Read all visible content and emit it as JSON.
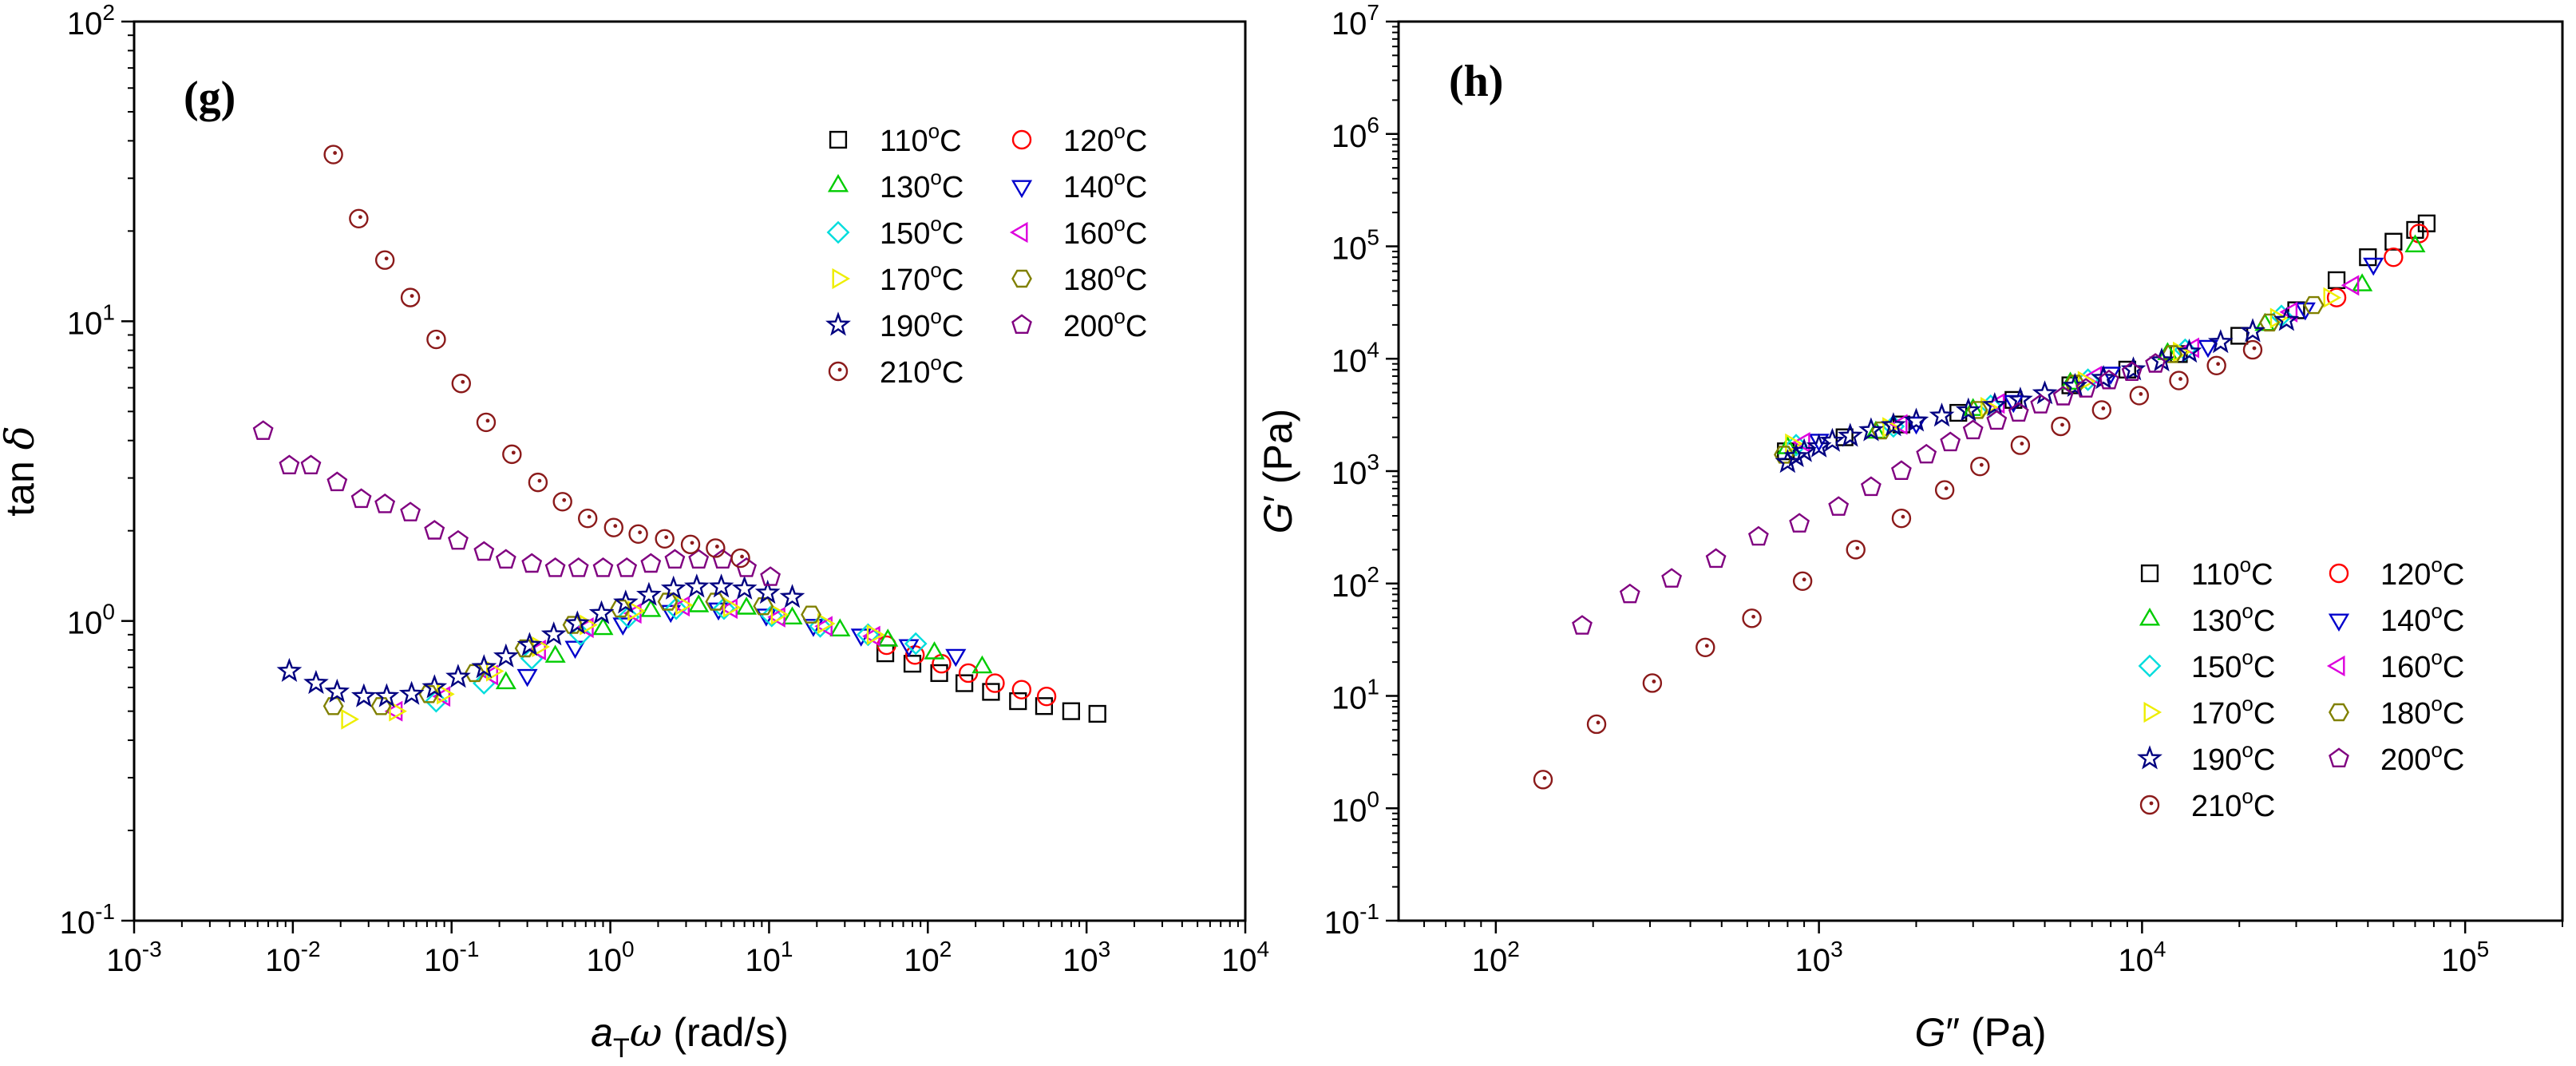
{
  "chart_data": [
    {
      "panel_label": "(g)",
      "type": "scatter",
      "xscale": "log",
      "yscale": "log",
      "xlim": [
        0.001,
        10000
      ],
      "ylim": [
        0.1,
        100
      ],
      "xlabel": {
        "main": "a",
        "sub": "T",
        "greek": "ω",
        "rest": " (rad/s)"
      },
      "ylabel": {
        "main": "tan ",
        "greek": "δ"
      },
      "xticks": [
        {
          "base": "10",
          "exp": "-3",
          "v": 0.001
        },
        {
          "base": "10",
          "exp": "-2",
          "v": 0.01
        },
        {
          "base": "10",
          "exp": "-1",
          "v": 0.1
        },
        {
          "base": "10",
          "exp": "0",
          "v": 1
        },
        {
          "base": "10",
          "exp": "1",
          "v": 10
        },
        {
          "base": "10",
          "exp": "2",
          "v": 100
        },
        {
          "base": "10",
          "exp": "3",
          "v": 1000
        },
        {
          "base": "10",
          "exp": "4",
          "v": 10000
        }
      ],
      "yticks": [
        {
          "base": "10",
          "exp": "-1",
          "v": 0.1
        },
        {
          "base": "10",
          "exp": "0",
          "v": 1
        },
        {
          "base": "10",
          "exp": "1",
          "v": 10
        },
        {
          "base": "10",
          "exp": "2",
          "v": 100
        }
      ],
      "legend_position": "top-right",
      "legend": [
        {
          "temp": "110",
          "unit": "C"
        },
        {
          "temp": "120",
          "unit": "C"
        },
        {
          "temp": "130",
          "unit": "C"
        },
        {
          "temp": "140",
          "unit": "C"
        },
        {
          "temp": "150",
          "unit": "C"
        },
        {
          "temp": "160",
          "unit": "C"
        },
        {
          "temp": "170",
          "unit": "C"
        },
        {
          "temp": "180",
          "unit": "C"
        },
        {
          "temp": "190",
          "unit": "C"
        },
        {
          "temp": "200",
          "unit": "C"
        },
        {
          "temp": "210",
          "unit": "C"
        }
      ],
      "series": [
        {
          "name": "110°C",
          "marker": "square",
          "color": "#000000",
          "x": [
            54,
            80,
            118,
            170,
            250,
            370,
            540,
            800,
            1170
          ],
          "y": [
            0.78,
            0.72,
            0.67,
            0.62,
            0.58,
            0.54,
            0.52,
            0.5,
            0.49
          ]
        },
        {
          "name": "120°C",
          "marker": "circle",
          "color": "#ff0000",
          "x": [
            55,
            83,
            122,
            180,
            265,
            390,
            560
          ],
          "y": [
            0.83,
            0.77,
            0.72,
            0.67,
            0.62,
            0.59,
            0.56
          ]
        },
        {
          "name": "130°C",
          "marker": "triangle-up",
          "color": "#00cc00",
          "x": [
            0.22,
            0.45,
            0.9,
            1.8,
            3.6,
            7.2,
            14,
            28,
            56,
            110,
            220
          ],
          "y": [
            0.62,
            0.76,
            0.94,
            1.08,
            1.12,
            1.1,
            1.02,
            0.93,
            0.86,
            0.78,
            0.7
          ]
        },
        {
          "name": "140°C",
          "marker": "triangle-down",
          "color": "#0000cc",
          "x": [
            0.3,
            0.6,
            1.2,
            2.4,
            4.8,
            9.6,
            19,
            38,
            76,
            150
          ],
          "y": [
            0.66,
            0.82,
            0.98,
            1.08,
            1.1,
            1.05,
            0.97,
            0.9,
            0.83,
            0.77
          ]
        },
        {
          "name": "150°C",
          "marker": "diamond",
          "color": "#00dddd",
          "x": [
            0.08,
            0.16,
            0.32,
            0.65,
            1.3,
            2.6,
            5.2,
            10.4,
            21,
            42,
            84
          ],
          "y": [
            0.54,
            0.62,
            0.75,
            0.9,
            1.03,
            1.1,
            1.1,
            1.04,
            0.96,
            0.9,
            0.84
          ]
        },
        {
          "name": "160°C",
          "marker": "triangle-left",
          "color": "#dd00dd",
          "x": [
            0.045,
            0.09,
            0.18,
            0.36,
            0.72,
            1.44,
            2.9,
            5.8,
            11.6,
            23,
            46
          ],
          "y": [
            0.5,
            0.56,
            0.66,
            0.8,
            0.95,
            1.06,
            1.12,
            1.1,
            1.03,
            0.96,
            0.89
          ]
        },
        {
          "name": "170°C",
          "marker": "triangle-right",
          "color": "#eeee00",
          "x": [
            0.022,
            0.044,
            0.088,
            0.18,
            0.35,
            0.7,
            1.4,
            2.8,
            5.6,
            11.2,
            22,
            45
          ],
          "y": [
            0.47,
            0.5,
            0.57,
            0.68,
            0.82,
            0.97,
            1.08,
            1.13,
            1.11,
            1.05,
            0.98,
            0.9
          ]
        },
        {
          "name": "180°C",
          "marker": "hexagon",
          "color": "#808000",
          "x": [
            0.018,
            0.036,
            0.072,
            0.14,
            0.29,
            0.58,
            1.16,
            2.3,
            4.6,
            9.2,
            18.4
          ],
          "y": [
            0.52,
            0.52,
            0.57,
            0.67,
            0.81,
            0.97,
            1.1,
            1.16,
            1.16,
            1.12,
            1.05
          ]
        },
        {
          "name": "190°C",
          "marker": "star",
          "color": "#000080",
          "x": [
            0.0095,
            0.014,
            0.019,
            0.028,
            0.039,
            0.056,
            0.078,
            0.11,
            0.16,
            0.22,
            0.31,
            0.44,
            0.62,
            0.88,
            1.25,
            1.75,
            2.5,
            3.5,
            5,
            7,
            9.8,
            14
          ],
          "y": [
            0.68,
            0.62,
            0.58,
            0.56,
            0.56,
            0.57,
            0.6,
            0.65,
            0.7,
            0.76,
            0.83,
            0.9,
            0.98,
            1.06,
            1.15,
            1.22,
            1.28,
            1.3,
            1.3,
            1.28,
            1.24,
            1.2
          ]
        },
        {
          "name": "200°C",
          "marker": "pentagon",
          "color": "#800080",
          "x": [
            0.0065,
            0.0095,
            0.013,
            0.019,
            0.027,
            0.038,
            0.055,
            0.078,
            0.11,
            0.16,
            0.22,
            0.32,
            0.45,
            0.63,
            0.9,
            1.27,
            1.8,
            2.55,
            3.6,
            5.1,
            7.2,
            10.2
          ],
          "y": [
            4.3,
            3.3,
            3.3,
            2.9,
            2.55,
            2.45,
            2.3,
            2.0,
            1.85,
            1.7,
            1.6,
            1.55,
            1.5,
            1.5,
            1.5,
            1.5,
            1.55,
            1.6,
            1.6,
            1.6,
            1.5,
            1.4
          ]
        },
        {
          "name": "210°C",
          "marker": "dotted-circle",
          "color": "#8b1a1a",
          "x": [
            0.018,
            0.026,
            0.038,
            0.055,
            0.08,
            0.115,
            0.165,
            0.24,
            0.35,
            0.5,
            0.72,
            1.05,
            1.5,
            2.2,
            3.2,
            4.6,
            6.6
          ],
          "y": [
            36,
            22,
            16,
            12,
            8.7,
            6.2,
            4.6,
            3.6,
            2.9,
            2.5,
            2.2,
            2.05,
            1.95,
            1.88,
            1.8,
            1.75,
            1.62
          ]
        }
      ]
    },
    {
      "panel_label": "(h)",
      "type": "scatter",
      "xscale": "log",
      "yscale": "log",
      "xlim": [
        50,
        200000
      ],
      "ylim": [
        0.1,
        10000000
      ],
      "xlabel": {
        "main": "G",
        "prime": "″",
        "rest": " (Pa)"
      },
      "ylabel": {
        "main": "G",
        "prime": "′",
        "rest": " (Pa)"
      },
      "xticks": [
        {
          "base": "10",
          "exp": "2",
          "v": 100
        },
        {
          "base": "10",
          "exp": "3",
          "v": 1000
        },
        {
          "base": "10",
          "exp": "4",
          "v": 10000
        },
        {
          "base": "10",
          "exp": "5",
          "v": 100000
        }
      ],
      "yticks": [
        {
          "base": "10",
          "exp": "-1",
          "v": 0.1
        },
        {
          "base": "10",
          "exp": "0",
          "v": 1
        },
        {
          "base": "10",
          "exp": "1",
          "v": 10
        },
        {
          "base": "10",
          "exp": "2",
          "v": 100
        },
        {
          "base": "10",
          "exp": "3",
          "v": 1000
        },
        {
          "base": "10",
          "exp": "4",
          "v": 10000
        },
        {
          "base": "10",
          "exp": "5",
          "v": 100000
        },
        {
          "base": "10",
          "exp": "6",
          "v": 1000000
        },
        {
          "base": "10",
          "exp": "7",
          "v": 10000000
        }
      ],
      "legend_position": "lower-right",
      "legend": [
        {
          "temp": "110",
          "unit": "C"
        },
        {
          "temp": "120",
          "unit": "C"
        },
        {
          "temp": "130",
          "unit": "C"
        },
        {
          "temp": "140",
          "unit": "C"
        },
        {
          "temp": "150",
          "unit": "C"
        },
        {
          "temp": "160",
          "unit": "C"
        },
        {
          "temp": "170",
          "unit": "C"
        },
        {
          "temp": "180",
          "unit": "C"
        },
        {
          "temp": "190",
          "unit": "C"
        },
        {
          "temp": "200",
          "unit": "C"
        },
        {
          "temp": "210",
          "unit": "C"
        }
      ],
      "series": [
        {
          "name": "110°C",
          "marker": "square",
          "color": "#000000",
          "x": [
            790,
            1200,
            1800,
            2700,
            4000,
            6000,
            9000,
            13000,
            20000,
            30000,
            40000,
            50000,
            60000,
            70000,
            76000
          ],
          "y": [
            1500,
            2000,
            2600,
            3300,
            4300,
            5800,
            8000,
            11000,
            16000,
            27000,
            50000,
            80000,
            110000,
            140000,
            160000
          ]
        },
        {
          "name": "120°C",
          "marker": "circle",
          "color": "#ff0000",
          "x": [
            40000,
            60000,
            72000
          ],
          "y": [
            35000,
            80000,
            130000
          ]
        },
        {
          "name": "130°C",
          "marker": "triangle-up",
          "color": "#00cc00",
          "x": [
            800,
            1500,
            3000,
            6000,
            12000,
            24000,
            48000,
            70000
          ],
          "y": [
            1600,
            2200,
            3500,
            6000,
            11000,
            20000,
            45000,
            100000
          ]
        },
        {
          "name": "140°C",
          "marker": "triangle-down",
          "color": "#0000cc",
          "x": [
            1000,
            2000,
            4000,
            8000,
            16000,
            32000,
            52000
          ],
          "y": [
            1900,
            2700,
            4200,
            7500,
            13000,
            28000,
            70000
          ]
        },
        {
          "name": "150°C",
          "marker": "diamond",
          "color": "#00dddd",
          "x": [
            850,
            1700,
            3400,
            6800,
            13600,
            27000
          ],
          "y": [
            1700,
            2500,
            3800,
            6500,
            12000,
            24000
          ]
        },
        {
          "name": "160°C",
          "marker": "triangle-left",
          "color": "#dd00dd",
          "x": [
            900,
            1800,
            3600,
            7200,
            14400,
            29000,
            45000
          ],
          "y": [
            1800,
            2600,
            4000,
            7000,
            12500,
            26000,
            45000
          ]
        },
        {
          "name": "170°C",
          "marker": "triangle-right",
          "color": "#eeee00",
          "x": [
            820,
            1640,
            3300,
            6600,
            13000,
            26000,
            38000
          ],
          "y": [
            1750,
            2450,
            3700,
            6300,
            11500,
            23000,
            35000
          ]
        },
        {
          "name": "180°C",
          "marker": "hexagon",
          "color": "#808000",
          "x": [
            780,
            1560,
            3100,
            6200,
            12400,
            24800,
            34000
          ],
          "y": [
            1400,
            2300,
            3500,
            6000,
            11000,
            21000,
            30000
          ]
        },
        {
          "name": "190°C",
          "marker": "star",
          "color": "#000080",
          "x": [
            800,
            850,
            900,
            1000,
            1100,
            1250,
            1450,
            1700,
            2000,
            2400,
            2900,
            3500,
            4200,
            5000,
            6200,
            7600,
            9400,
            11500,
            14000,
            17500,
            22000,
            28000
          ],
          "y": [
            1200,
            1350,
            1500,
            1650,
            1850,
            2050,
            2300,
            2550,
            2800,
            3100,
            3450,
            3850,
            4300,
            4900,
            5700,
            6700,
            8000,
            9600,
            11500,
            14000,
            17500,
            22000
          ]
        },
        {
          "name": "200°C",
          "marker": "pentagon",
          "color": "#800080",
          "x": [
            185,
            260,
            350,
            480,
            650,
            870,
            1150,
            1450,
            1800,
            2150,
            2550,
            3000,
            3550,
            4150,
            4850,
            5700,
            6700,
            7900,
            9300,
            11000
          ],
          "y": [
            42,
            80,
            110,
            165,
            260,
            340,
            480,
            720,
            1000,
            1400,
            1800,
            2300,
            2800,
            3300,
            3900,
            4600,
            5400,
            6400,
            7600,
            9000
          ]
        },
        {
          "name": "210°C",
          "marker": "dotted-circle",
          "color": "#8b1a1a",
          "x": [
            140,
            205,
            305,
            445,
            620,
            890,
            1300,
            1800,
            2450,
            3150,
            4200,
            5600,
            7500,
            9800,
            13000,
            17000,
            22000
          ],
          "y": [
            1.8,
            5.6,
            13,
            27,
            49,
            105,
            200,
            380,
            680,
            1100,
            1700,
            2500,
            3500,
            4700,
            6400,
            8700,
            12000
          ]
        }
      ]
    }
  ]
}
